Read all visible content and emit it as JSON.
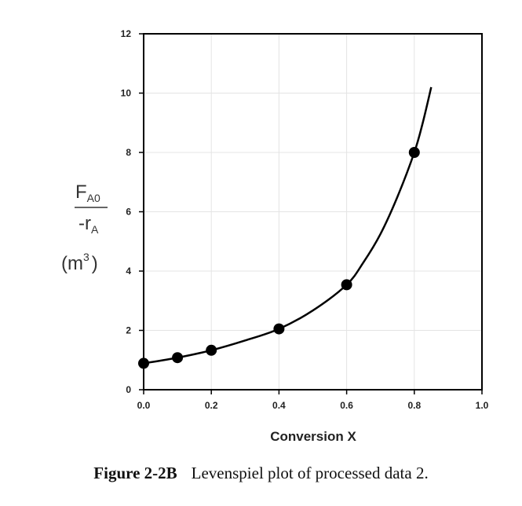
{
  "chart_data": {
    "type": "scatter",
    "xlabel": "Conversion X",
    "ylabel": {
      "numerator_main": "F",
      "numerator_sub": "A0",
      "denominator_main": "-r",
      "denominator_sub": "A",
      "units_main": "(m",
      "units_sup": "3",
      "units_close": ")"
    },
    "xlim": [
      0,
      1
    ],
    "ylim": [
      0,
      12
    ],
    "x_ticks": [
      "0.0",
      "0.2",
      "0.4",
      "0.6",
      "0.8",
      "1.0"
    ],
    "y_ticks": [
      "0",
      "2",
      "4",
      "6",
      "8",
      "10",
      "12"
    ],
    "grid": true,
    "series": [
      {
        "points": [
          {
            "x": 0.0,
            "y": 0.89
          },
          {
            "x": 0.1,
            "y": 1.08
          },
          {
            "x": 0.2,
            "y": 1.33
          },
          {
            "x": 0.4,
            "y": 2.05
          },
          {
            "x": 0.6,
            "y": 3.54
          },
          {
            "x": 0.8,
            "y": 8.0
          }
        ]
      }
    ],
    "fit_curve": {
      "x": [
        0.0,
        0.1,
        0.2,
        0.3,
        0.4,
        0.5,
        0.6,
        0.65,
        0.7,
        0.75,
        0.8,
        0.825,
        0.85
      ],
      "y": [
        0.89,
        1.08,
        1.33,
        1.66,
        2.05,
        2.67,
        3.54,
        4.3,
        5.25,
        6.5,
        8.0,
        9.0,
        10.2
      ]
    }
  },
  "caption": {
    "figure_number": "Figure 2-2B",
    "text": "Levenspiel plot of processed data 2."
  }
}
